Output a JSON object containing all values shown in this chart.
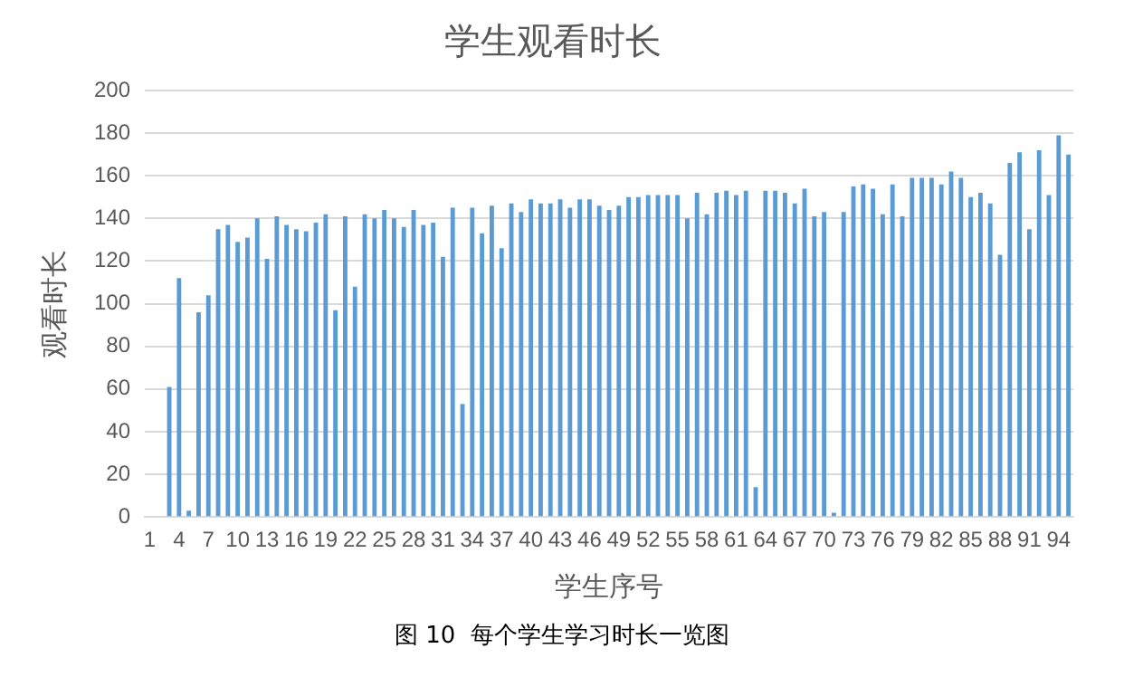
{
  "chart_data": {
    "type": "bar",
    "title": "学生观看时长",
    "xlabel": "学生序号",
    "ylabel": "观看时长",
    "categories": [
      "1",
      null,
      null,
      "4",
      null,
      null,
      "7",
      null,
      null,
      "10",
      null,
      null,
      "13",
      null,
      null,
      "16",
      null,
      null,
      "19",
      null,
      null,
      "22",
      null,
      null,
      "25",
      null,
      null,
      "28",
      null,
      null,
      "31",
      null,
      null,
      "34",
      null,
      null,
      "37",
      null,
      null,
      "40",
      null,
      null,
      "43",
      null,
      null,
      "46",
      null,
      null,
      "49",
      null,
      null,
      "52",
      null,
      null,
      "55",
      null,
      null,
      "58",
      null,
      null,
      "61",
      null,
      null,
      "64",
      null,
      null,
      "67",
      null,
      null,
      "70",
      null,
      null,
      "73",
      null,
      null,
      "76",
      null,
      null,
      "79",
      null,
      null,
      "82",
      null,
      null,
      "85",
      null,
      null,
      "88",
      null,
      null,
      "91",
      null,
      null,
      "94",
      null
    ],
    "values": [
      0,
      0,
      61,
      112,
      3,
      96,
      104,
      135,
      137,
      129,
      131,
      140,
      121,
      141,
      137,
      135,
      134,
      138,
      142,
      97,
      141,
      108,
      142,
      140,
      144,
      140,
      136,
      144,
      137,
      138,
      122,
      145,
      53,
      145,
      133,
      146,
      126,
      147,
      143,
      149,
      147,
      147,
      149,
      145,
      149,
      149,
      146,
      144,
      146,
      150,
      150,
      151,
      151,
      151,
      151,
      140,
      152,
      142,
      152,
      153,
      151,
      153,
      14,
      153,
      153,
      152,
      147,
      154,
      141,
      143,
      2,
      143,
      155,
      156,
      154,
      142,
      156,
      141,
      159,
      159,
      159,
      156,
      162,
      159,
      150,
      152,
      147,
      123,
      166,
      171,
      135,
      172,
      151,
      179,
      170
    ],
    "color": "#5b9bd5",
    "ylim": [
      0,
      200
    ],
    "yticks": [
      0,
      20,
      40,
      60,
      80,
      100,
      120,
      140,
      160,
      180,
      200
    ],
    "grid": "y",
    "annotations": [
      "图 10  每个学生学习时长一览图"
    ]
  }
}
